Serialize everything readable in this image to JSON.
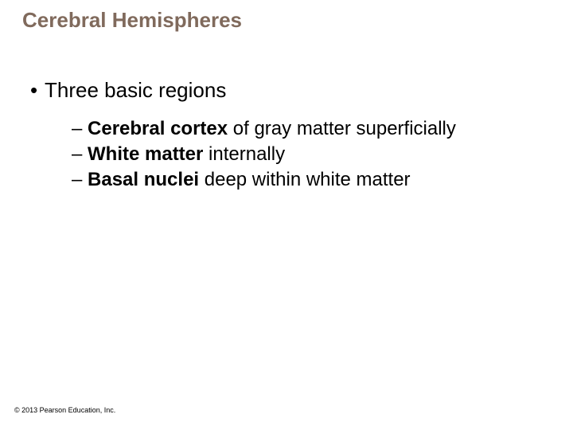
{
  "title": "Cerebral Hemispheres",
  "title_color": "#806a5c",
  "title_fontsize": 26,
  "body_color": "#000000",
  "body_fontsize": 26,
  "sub_fontsize": 24,
  "background_color": "#ffffff",
  "main_bullet": "Three basic regions",
  "sub_items": [
    {
      "bold": "Cerebral cortex",
      "rest": " of gray matter superficially"
    },
    {
      "bold": "White matter",
      "rest": " internally"
    },
    {
      "bold": "Basal nuclei",
      "rest": " deep within white matter"
    }
  ],
  "copyright": "© 2013 Pearson Education, Inc."
}
